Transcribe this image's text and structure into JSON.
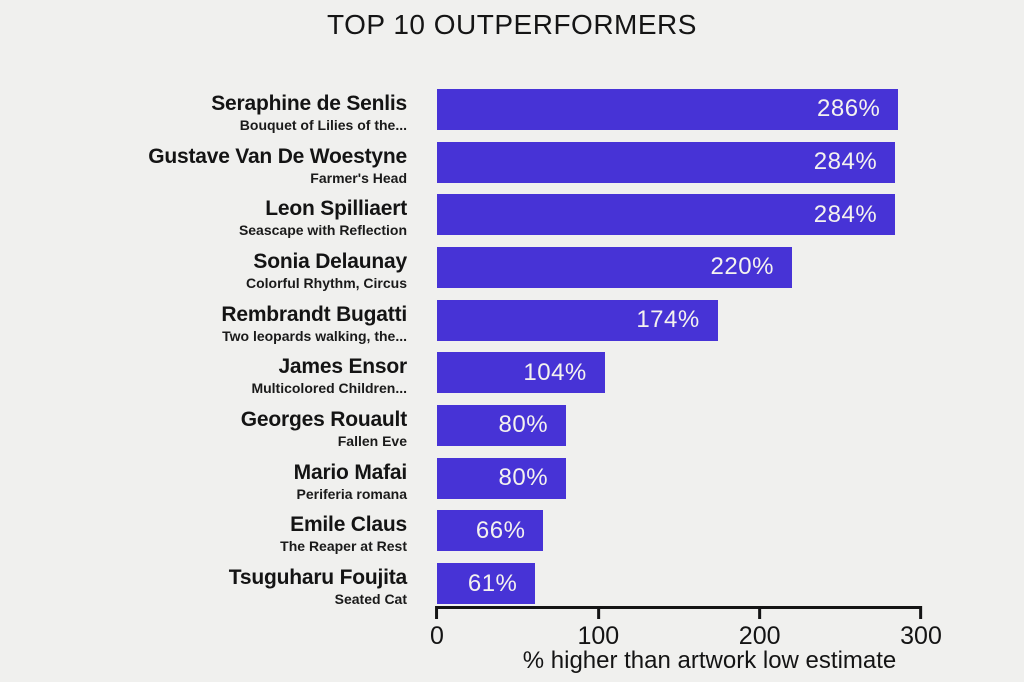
{
  "page": {
    "background": "#f0f0ee",
    "text_color": "#141414"
  },
  "chart_data": {
    "type": "bar",
    "orientation": "horizontal",
    "title": "TOP 10 OUTPERFORMERS",
    "xlabel": "% higher than artwork low estimate",
    "xlim": [
      0,
      300
    ],
    "grid": false,
    "legend": false,
    "bar_color": "#4733d6",
    "value_label_color": "#f4f2ef",
    "axis_color": "#141414",
    "xticks": [
      {
        "value": 0,
        "label": "0"
      },
      {
        "value": 100,
        "label": "100"
      },
      {
        "value": 200,
        "label": "200"
      },
      {
        "value": 300,
        "label": "300"
      }
    ],
    "bars": [
      {
        "artist": "Seraphine de Senlis",
        "artwork": "Bouquet of Lilies of the...",
        "value": 286,
        "label": "286%"
      },
      {
        "artist": "Gustave Van De Woestyne",
        "artwork": "Farmer's Head",
        "value": 284,
        "label": "284%"
      },
      {
        "artist": "Leon Spilliaert",
        "artwork": "Seascape with Reflection",
        "value": 284,
        "label": "284%"
      },
      {
        "artist": "Sonia Delaunay",
        "artwork": "Colorful Rhythm, Circus",
        "value": 220,
        "label": "220%"
      },
      {
        "artist": "Rembrandt Bugatti",
        "artwork": "Two leopards walking, the...",
        "value": 174,
        "label": "174%"
      },
      {
        "artist": "James Ensor",
        "artwork": "Multicolored Children...",
        "value": 104,
        "label": "104%"
      },
      {
        "artist": "Georges Rouault",
        "artwork": "Fallen Eve",
        "value": 80,
        "label": "80%"
      },
      {
        "artist": "Mario Mafai",
        "artwork": "Periferia romana",
        "value": 80,
        "label": "80%"
      },
      {
        "artist": "Emile Claus",
        "artwork": "The Reaper at Rest",
        "value": 66,
        "label": "66%"
      },
      {
        "artist": "Tsuguharu Foujita",
        "artwork": "Seated Cat",
        "value": 61,
        "label": "61%"
      }
    ]
  }
}
